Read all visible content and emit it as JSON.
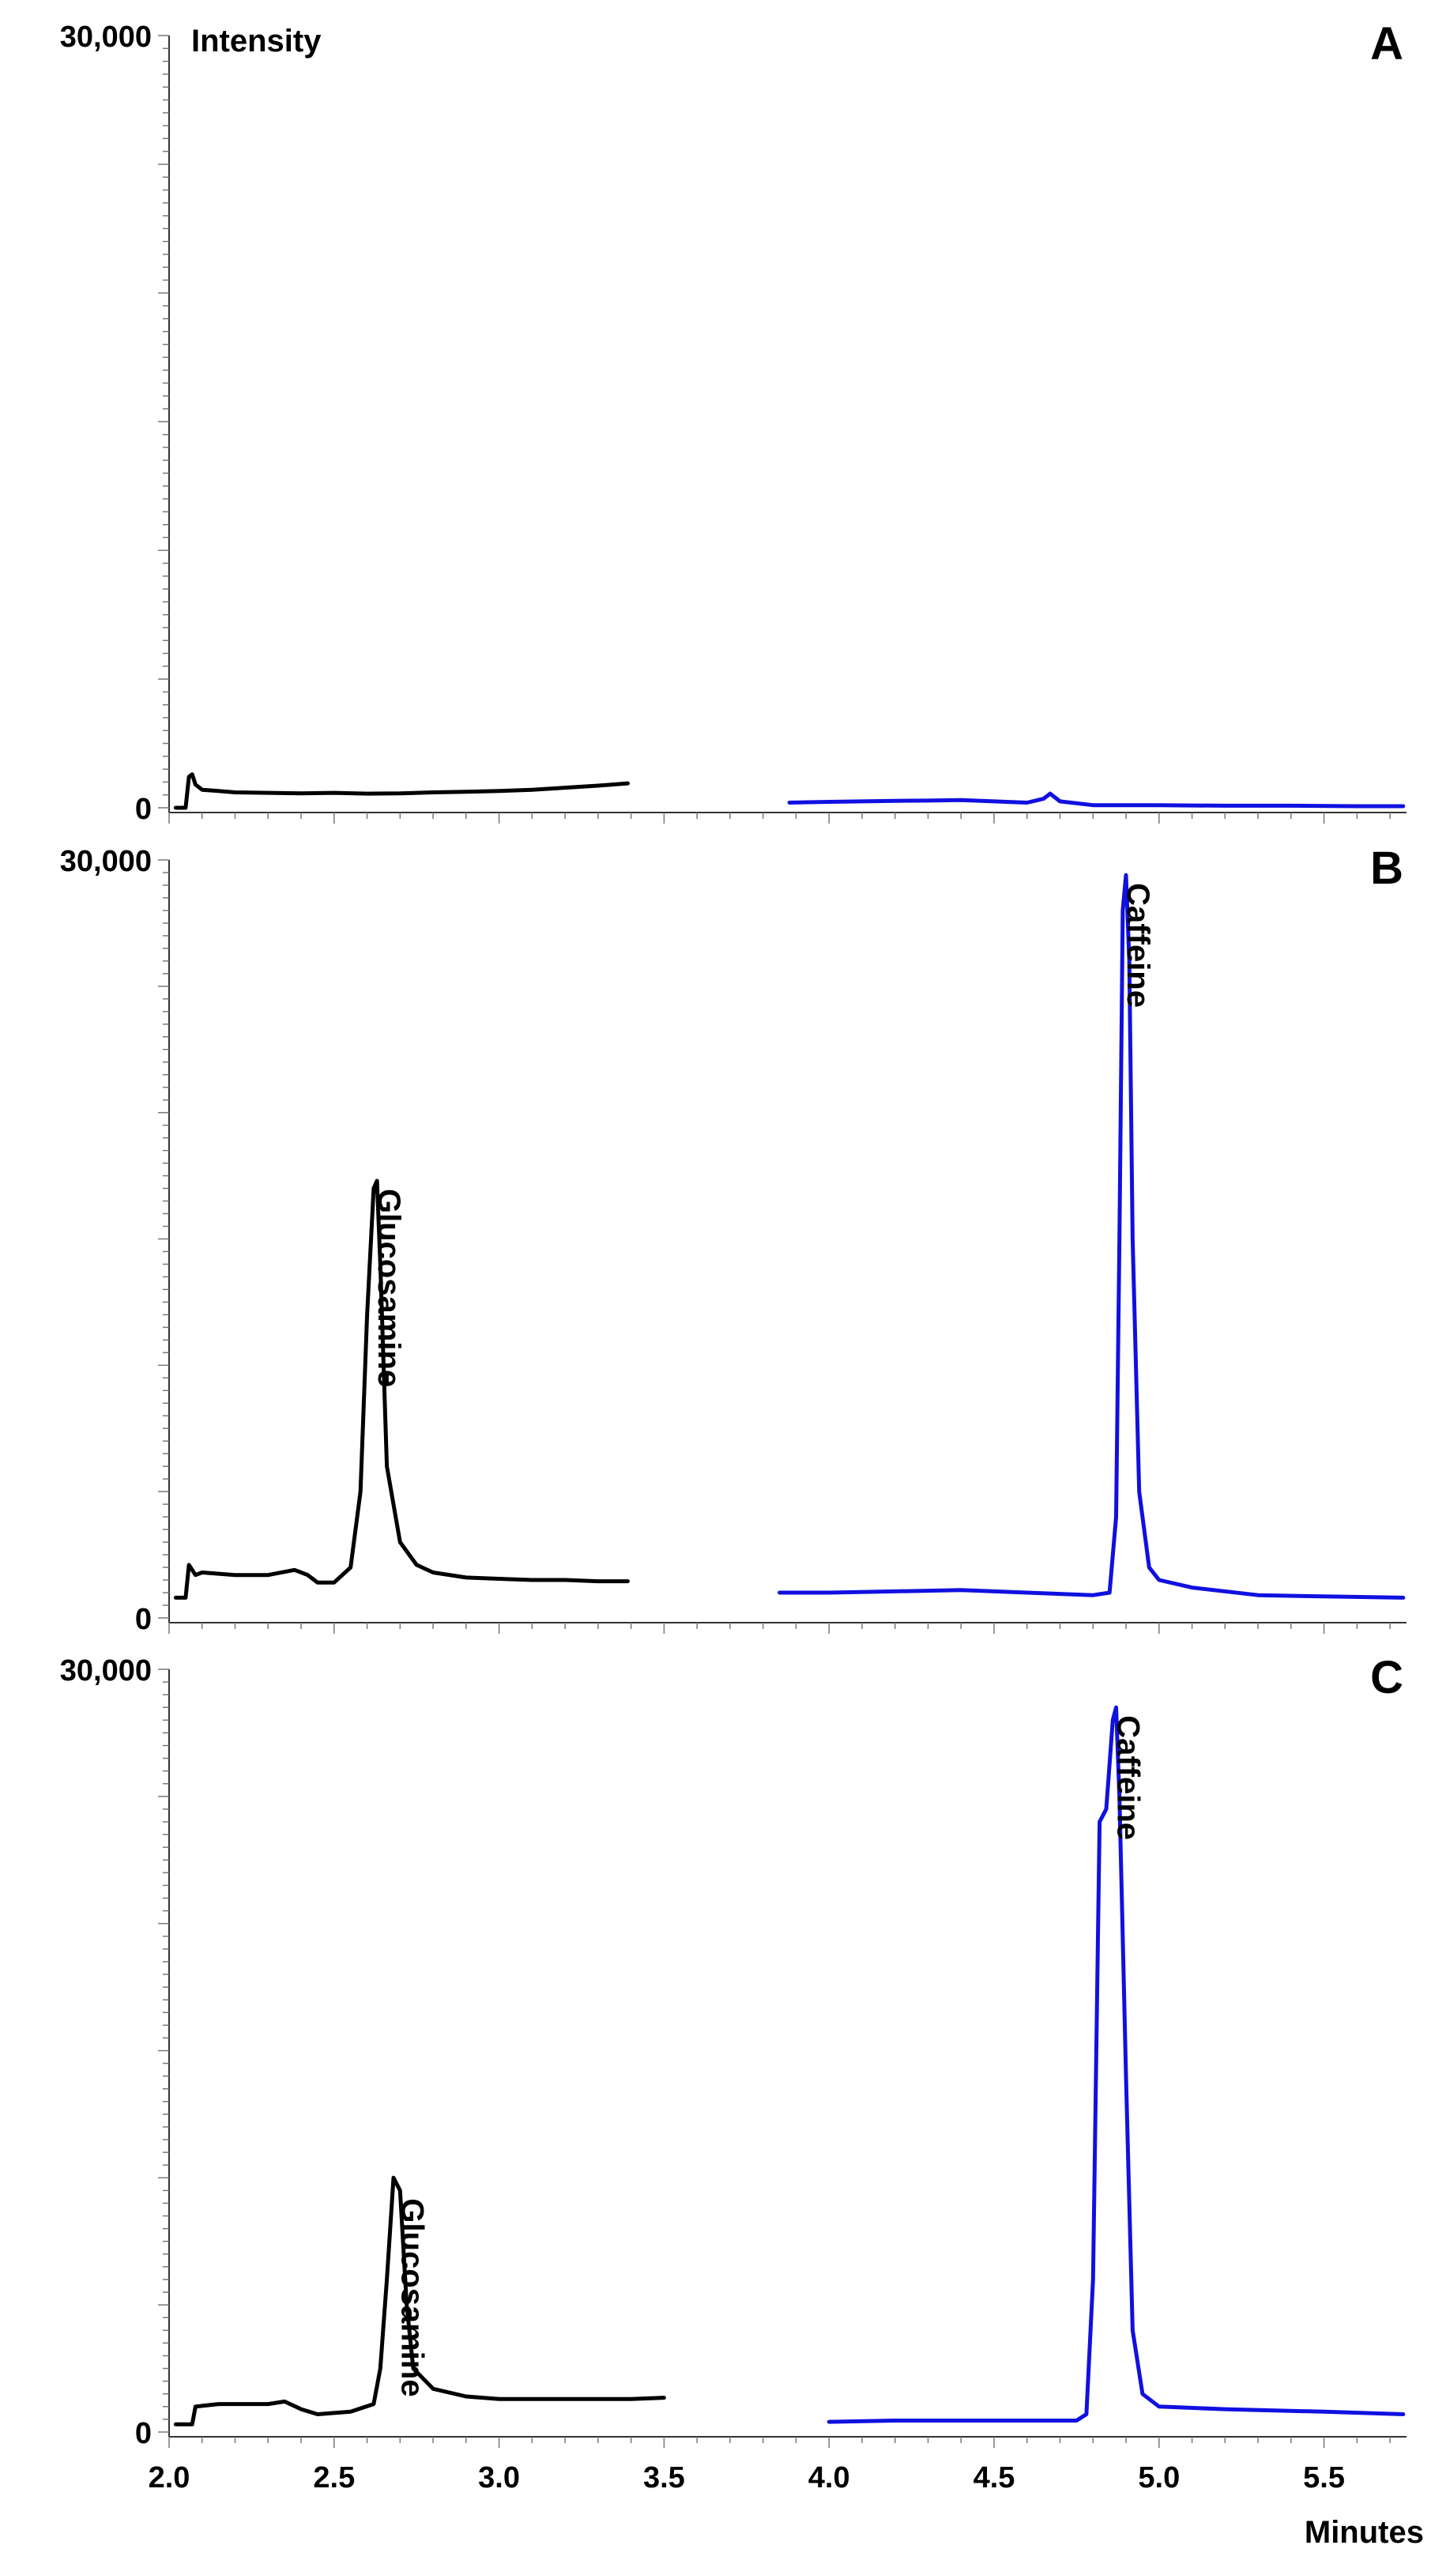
{
  "chart_data": [
    {
      "type": "line",
      "panel_label": "A",
      "ylabel": "Intensity",
      "ylim": [
        0,
        30000
      ],
      "xlim": [
        2.0,
        5.75
      ],
      "y_tick_labels": [
        "0",
        "30,000"
      ],
      "colors": {
        "black": "#000000",
        "blue": "#1010e0"
      },
      "series": [
        {
          "color": "black",
          "points": [
            [
              2.02,
              0
            ],
            [
              2.05,
              0
            ],
            [
              2.06,
              1200
            ],
            [
              2.07,
              1300
            ],
            [
              2.08,
              900
            ],
            [
              2.1,
              700
            ],
            [
              2.15,
              650
            ],
            [
              2.2,
              600
            ],
            [
              2.3,
              580
            ],
            [
              2.4,
              560
            ],
            [
              2.5,
              580
            ],
            [
              2.6,
              550
            ],
            [
              2.7,
              560
            ],
            [
              2.8,
              600
            ],
            [
              2.9,
              620
            ],
            [
              3.0,
              650
            ],
            [
              3.1,
              700
            ],
            [
              3.2,
              780
            ],
            [
              3.3,
              860
            ],
            [
              3.39,
              950
            ]
          ]
        },
        {
          "color": "blue",
          "points": [
            [
              3.88,
              200
            ],
            [
              4.0,
              230
            ],
            [
              4.1,
              250
            ],
            [
              4.2,
              270
            ],
            [
              4.3,
              280
            ],
            [
              4.4,
              300
            ],
            [
              4.5,
              250
            ],
            [
              4.6,
              200
            ],
            [
              4.65,
              350
            ],
            [
              4.67,
              550
            ],
            [
              4.7,
              250
            ],
            [
              4.8,
              100
            ],
            [
              5.0,
              100
            ],
            [
              5.2,
              80
            ],
            [
              5.4,
              80
            ],
            [
              5.6,
              60
            ],
            [
              5.74,
              60
            ]
          ]
        }
      ],
      "annotations": []
    },
    {
      "type": "line",
      "panel_label": "B",
      "ylim": [
        0,
        30000
      ],
      "xlim": [
        2.0,
        5.75
      ],
      "y_tick_labels": [
        "0",
        "30,000"
      ],
      "colors": {
        "black": "#000000",
        "blue": "#1010e0"
      },
      "series": [
        {
          "color": "black",
          "points": [
            [
              2.02,
              800
            ],
            [
              2.05,
              800
            ],
            [
              2.06,
              2100
            ],
            [
              2.08,
              1700
            ],
            [
              2.1,
              1800
            ],
            [
              2.2,
              1700
            ],
            [
              2.3,
              1700
            ],
            [
              2.38,
              1900
            ],
            [
              2.42,
              1700
            ],
            [
              2.45,
              1400
            ],
            [
              2.5,
              1400
            ],
            [
              2.55,
              2000
            ],
            [
              2.58,
              5000
            ],
            [
              2.6,
              12000
            ],
            [
              2.62,
              17000
            ],
            [
              2.63,
              17300
            ],
            [
              2.64,
              14000
            ],
            [
              2.66,
              6000
            ],
            [
              2.7,
              3000
            ],
            [
              2.75,
              2100
            ],
            [
              2.8,
              1800
            ],
            [
              2.9,
              1600
            ],
            [
              3.0,
              1550
            ],
            [
              3.1,
              1500
            ],
            [
              3.2,
              1500
            ],
            [
              3.3,
              1450
            ],
            [
              3.39,
              1450
            ]
          ]
        },
        {
          "color": "blue",
          "points": [
            [
              3.85,
              1000
            ],
            [
              4.0,
              1000
            ],
            [
              4.2,
              1050
            ],
            [
              4.4,
              1100
            ],
            [
              4.6,
              1000
            ],
            [
              4.8,
              900
            ],
            [
              4.85,
              1000
            ],
            [
              4.87,
              4000
            ],
            [
              4.88,
              15000
            ],
            [
              4.89,
              28000
            ],
            [
              4.9,
              29400
            ],
            [
              4.91,
              26000
            ],
            [
              4.92,
              15000
            ],
            [
              4.94,
              5000
            ],
            [
              4.97,
              2000
            ],
            [
              5.0,
              1500
            ],
            [
              5.1,
              1200
            ],
            [
              5.3,
              900
            ],
            [
              5.5,
              850
            ],
            [
              5.74,
              800
            ]
          ]
        }
      ],
      "annotations": [
        {
          "text": "Glucosamine",
          "x": 2.63,
          "y": 17300
        },
        {
          "text": "Caffeine",
          "x": 4.9,
          "y": 29400
        }
      ]
    },
    {
      "type": "line",
      "panel_label": "C",
      "xlabel": "Minutes",
      "ylim": [
        0,
        30000
      ],
      "xlim": [
        2.0,
        5.75
      ],
      "y_tick_labels": [
        "0",
        "30,000"
      ],
      "x_tick_labels": [
        "2.0",
        "2.5",
        "3.0",
        "3.5",
        "4.0",
        "4.5",
        "5.0",
        "5.5"
      ],
      "x_ticks": [
        2.0,
        2.5,
        3.0,
        3.5,
        4.0,
        4.5,
        5.0,
        5.5
      ],
      "colors": {
        "black": "#000000",
        "blue": "#1010e0"
      },
      "series": [
        {
          "color": "black",
          "points": [
            [
              2.02,
              300
            ],
            [
              2.07,
              300
            ],
            [
              2.08,
              1000
            ],
            [
              2.15,
              1100
            ],
            [
              2.3,
              1100
            ],
            [
              2.35,
              1200
            ],
            [
              2.4,
              900
            ],
            [
              2.45,
              700
            ],
            [
              2.55,
              800
            ],
            [
              2.62,
              1100
            ],
            [
              2.64,
              2500
            ],
            [
              2.66,
              6000
            ],
            [
              2.68,
              10000
            ],
            [
              2.7,
              9500
            ],
            [
              2.72,
              5000
            ],
            [
              2.74,
              2500
            ],
            [
              2.8,
              1700
            ],
            [
              2.9,
              1400
            ],
            [
              3.0,
              1300
            ],
            [
              3.2,
              1300
            ],
            [
              3.4,
              1300
            ],
            [
              3.5,
              1350
            ]
          ]
        },
        {
          "color": "blue",
          "points": [
            [
              4.0,
              400
            ],
            [
              4.2,
              450
            ],
            [
              4.4,
              450
            ],
            [
              4.6,
              450
            ],
            [
              4.75,
              450
            ],
            [
              4.78,
              700
            ],
            [
              4.8,
              6000
            ],
            [
              4.82,
              24000
            ],
            [
              4.84,
              24500
            ],
            [
              4.86,
              28000
            ],
            [
              4.87,
              28500
            ],
            [
              4.88,
              25000
            ],
            [
              4.9,
              14000
            ],
            [
              4.92,
              4000
            ],
            [
              4.95,
              1500
            ],
            [
              5.0,
              1000
            ],
            [
              5.2,
              900
            ],
            [
              5.5,
              800
            ],
            [
              5.74,
              700
            ]
          ]
        }
      ],
      "annotations": [
        {
          "text": "Glucosamine",
          "x": 2.7,
          "y": 9500
        },
        {
          "text": "Caffeine",
          "x": 4.87,
          "y": 28500
        }
      ]
    }
  ]
}
